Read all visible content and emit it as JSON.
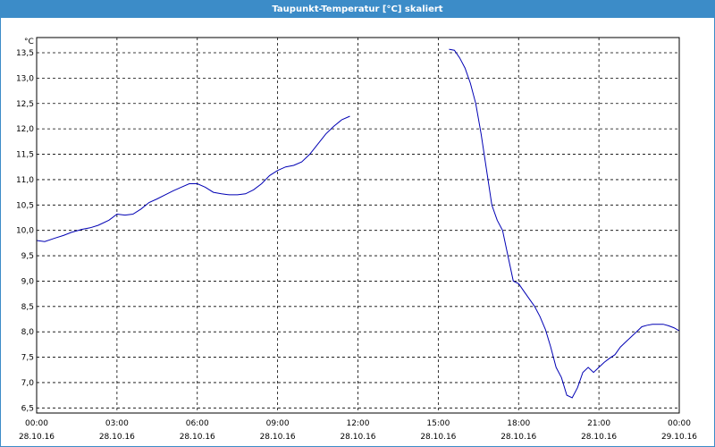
{
  "window": {
    "title": "Taupunkt-Temperatur [°C] skaliert"
  },
  "chart_data": {
    "type": "line",
    "title": "Taupunkt-Temperatur [°C] skaliert",
    "ylabel": "°C",
    "ylim": [
      6.4,
      13.8
    ],
    "yticks": [
      "13,5",
      "13,0",
      "12,5",
      "12,0",
      "11,5",
      "11,0",
      "10,5",
      "10,0",
      "9,5",
      "9,0",
      "8,5",
      "8,0",
      "7,5",
      "7,0",
      "6,5"
    ],
    "ytick_values": [
      13.5,
      13.0,
      12.5,
      12.0,
      11.5,
      11.0,
      10.5,
      10.0,
      9.5,
      9.0,
      8.5,
      8.0,
      7.5,
      7.0,
      6.5
    ],
    "xlim_hours": [
      0,
      24
    ],
    "xticks": [
      {
        "time": "00:00",
        "date": "28.10.16"
      },
      {
        "time": "03:00",
        "date": "28.10.16"
      },
      {
        "time": "06:00",
        "date": "28.10.16"
      },
      {
        "time": "09:00",
        "date": "28.10.16"
      },
      {
        "time": "12:00",
        "date": "28.10.16"
      },
      {
        "time": "15:00",
        "date": "28.10.16"
      },
      {
        "time": "18:00",
        "date": "28.10.16"
      },
      {
        "time": "21:00",
        "date": "28.10.16"
      },
      {
        "time": "00:00",
        "date": "29.10.16"
      }
    ],
    "grid": true,
    "line_color": "#0000b4",
    "series": [
      {
        "segments": [
          [
            [
              0.0,
              9.8
            ],
            [
              0.3,
              9.78
            ],
            [
              0.7,
              9.85
            ],
            [
              1.0,
              9.9
            ],
            [
              1.3,
              9.96
            ],
            [
              1.7,
              10.02
            ],
            [
              2.0,
              10.05
            ],
            [
              2.3,
              10.1
            ],
            [
              2.7,
              10.2
            ],
            [
              3.0,
              10.32
            ],
            [
              3.3,
              10.3
            ],
            [
              3.6,
              10.32
            ],
            [
              3.9,
              10.42
            ],
            [
              4.2,
              10.55
            ],
            [
              4.5,
              10.62
            ],
            [
              4.8,
              10.7
            ],
            [
              5.1,
              10.78
            ],
            [
              5.4,
              10.85
            ],
            [
              5.7,
              10.92
            ],
            [
              6.0,
              10.92
            ],
            [
              6.3,
              10.85
            ],
            [
              6.6,
              10.75
            ],
            [
              6.9,
              10.72
            ],
            [
              7.2,
              10.7
            ],
            [
              7.5,
              10.7
            ],
            [
              7.8,
              10.72
            ],
            [
              8.1,
              10.8
            ],
            [
              8.4,
              10.92
            ],
            [
              8.7,
              11.08
            ],
            [
              9.0,
              11.18
            ],
            [
              9.3,
              11.25
            ],
            [
              9.6,
              11.28
            ],
            [
              9.9,
              11.35
            ],
            [
              10.2,
              11.5
            ],
            [
              10.5,
              11.7
            ],
            [
              10.8,
              11.9
            ],
            [
              11.1,
              12.05
            ],
            [
              11.4,
              12.18
            ],
            [
              11.7,
              12.25
            ]
          ],
          [
            [
              15.4,
              13.57
            ],
            [
              15.6,
              13.55
            ],
            [
              15.8,
              13.4
            ],
            [
              16.0,
              13.2
            ],
            [
              16.2,
              12.9
            ],
            [
              16.4,
              12.5
            ],
            [
              16.6,
              11.9
            ],
            [
              16.8,
              11.2
            ],
            [
              17.0,
              10.5
            ],
            [
              17.2,
              10.2
            ],
            [
              17.4,
              10.0
            ],
            [
              17.6,
              9.5
            ],
            [
              17.8,
              9.0
            ],
            [
              18.0,
              8.95
            ],
            [
              18.2,
              8.8
            ],
            [
              18.4,
              8.65
            ],
            [
              18.6,
              8.5
            ],
            [
              18.8,
              8.3
            ],
            [
              19.0,
              8.05
            ],
            [
              19.2,
              7.7
            ],
            [
              19.4,
              7.3
            ],
            [
              19.6,
              7.1
            ],
            [
              19.8,
              6.75
            ],
            [
              20.0,
              6.7
            ],
            [
              20.2,
              6.9
            ],
            [
              20.4,
              7.2
            ],
            [
              20.6,
              7.3
            ],
            [
              20.8,
              7.2
            ],
            [
              21.0,
              7.3
            ],
            [
              21.2,
              7.4
            ],
            [
              21.4,
              7.48
            ],
            [
              21.6,
              7.55
            ],
            [
              21.8,
              7.7
            ],
            [
              22.0,
              7.8
            ],
            [
              22.2,
              7.9
            ],
            [
              22.4,
              8.0
            ],
            [
              22.6,
              8.1
            ],
            [
              22.8,
              8.13
            ],
            [
              23.0,
              8.15
            ],
            [
              23.2,
              8.15
            ],
            [
              23.4,
              8.15
            ],
            [
              23.6,
              8.12
            ],
            [
              23.8,
              8.08
            ],
            [
              24.0,
              8.02
            ]
          ]
        ]
      }
    ]
  }
}
